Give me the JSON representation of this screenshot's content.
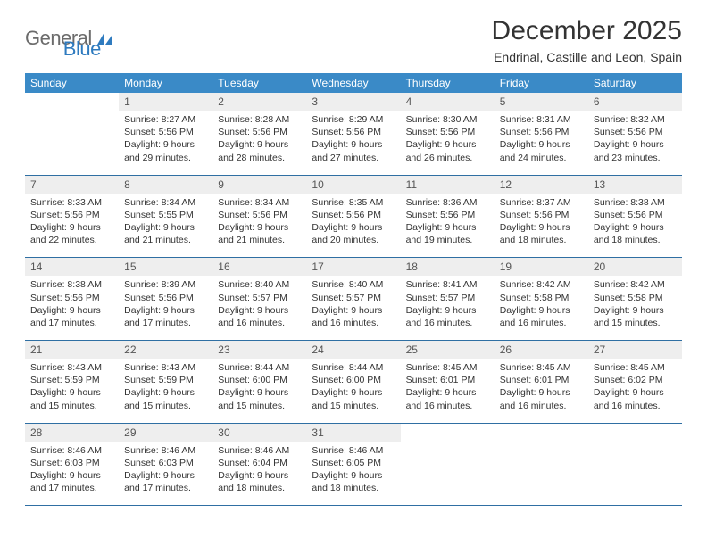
{
  "logo": {
    "word1": "General",
    "word2": "Blue"
  },
  "header": {
    "title": "December 2025",
    "location": "Endrinal, Castille and Leon, Spain"
  },
  "colors": {
    "header_bg": "#3a8ac7",
    "header_text": "#ffffff",
    "daynum_bg": "#eeeeee",
    "daynum_text": "#555555",
    "row_border": "#2f6fa3",
    "body_text": "#333333",
    "logo_gray": "#6b6b6b",
    "logo_blue": "#2f7bbf",
    "page_bg": "#ffffff"
  },
  "fonts": {
    "title_pt": 30,
    "subtitle_pt": 14,
    "th_pt": 12,
    "daynum_pt": 12,
    "body_pt": 10.5
  },
  "weekdays": [
    "Sunday",
    "Monday",
    "Tuesday",
    "Wednesday",
    "Thursday",
    "Friday",
    "Saturday"
  ],
  "weeks": [
    [
      {
        "empty": true
      },
      {
        "n": "1",
        "sr": "Sunrise: 8:27 AM",
        "ss": "Sunset: 5:56 PM",
        "dl": "Daylight: 9 hours and 29 minutes."
      },
      {
        "n": "2",
        "sr": "Sunrise: 8:28 AM",
        "ss": "Sunset: 5:56 PM",
        "dl": "Daylight: 9 hours and 28 minutes."
      },
      {
        "n": "3",
        "sr": "Sunrise: 8:29 AM",
        "ss": "Sunset: 5:56 PM",
        "dl": "Daylight: 9 hours and 27 minutes."
      },
      {
        "n": "4",
        "sr": "Sunrise: 8:30 AM",
        "ss": "Sunset: 5:56 PM",
        "dl": "Daylight: 9 hours and 26 minutes."
      },
      {
        "n": "5",
        "sr": "Sunrise: 8:31 AM",
        "ss": "Sunset: 5:56 PM",
        "dl": "Daylight: 9 hours and 24 minutes."
      },
      {
        "n": "6",
        "sr": "Sunrise: 8:32 AM",
        "ss": "Sunset: 5:56 PM",
        "dl": "Daylight: 9 hours and 23 minutes."
      }
    ],
    [
      {
        "n": "7",
        "sr": "Sunrise: 8:33 AM",
        "ss": "Sunset: 5:56 PM",
        "dl": "Daylight: 9 hours and 22 minutes."
      },
      {
        "n": "8",
        "sr": "Sunrise: 8:34 AM",
        "ss": "Sunset: 5:55 PM",
        "dl": "Daylight: 9 hours and 21 minutes."
      },
      {
        "n": "9",
        "sr": "Sunrise: 8:34 AM",
        "ss": "Sunset: 5:56 PM",
        "dl": "Daylight: 9 hours and 21 minutes."
      },
      {
        "n": "10",
        "sr": "Sunrise: 8:35 AM",
        "ss": "Sunset: 5:56 PM",
        "dl": "Daylight: 9 hours and 20 minutes."
      },
      {
        "n": "11",
        "sr": "Sunrise: 8:36 AM",
        "ss": "Sunset: 5:56 PM",
        "dl": "Daylight: 9 hours and 19 minutes."
      },
      {
        "n": "12",
        "sr": "Sunrise: 8:37 AM",
        "ss": "Sunset: 5:56 PM",
        "dl": "Daylight: 9 hours and 18 minutes."
      },
      {
        "n": "13",
        "sr": "Sunrise: 8:38 AM",
        "ss": "Sunset: 5:56 PM",
        "dl": "Daylight: 9 hours and 18 minutes."
      }
    ],
    [
      {
        "n": "14",
        "sr": "Sunrise: 8:38 AM",
        "ss": "Sunset: 5:56 PM",
        "dl": "Daylight: 9 hours and 17 minutes."
      },
      {
        "n": "15",
        "sr": "Sunrise: 8:39 AM",
        "ss": "Sunset: 5:56 PM",
        "dl": "Daylight: 9 hours and 17 minutes."
      },
      {
        "n": "16",
        "sr": "Sunrise: 8:40 AM",
        "ss": "Sunset: 5:57 PM",
        "dl": "Daylight: 9 hours and 16 minutes."
      },
      {
        "n": "17",
        "sr": "Sunrise: 8:40 AM",
        "ss": "Sunset: 5:57 PM",
        "dl": "Daylight: 9 hours and 16 minutes."
      },
      {
        "n": "18",
        "sr": "Sunrise: 8:41 AM",
        "ss": "Sunset: 5:57 PM",
        "dl": "Daylight: 9 hours and 16 minutes."
      },
      {
        "n": "19",
        "sr": "Sunrise: 8:42 AM",
        "ss": "Sunset: 5:58 PM",
        "dl": "Daylight: 9 hours and 16 minutes."
      },
      {
        "n": "20",
        "sr": "Sunrise: 8:42 AM",
        "ss": "Sunset: 5:58 PM",
        "dl": "Daylight: 9 hours and 15 minutes."
      }
    ],
    [
      {
        "n": "21",
        "sr": "Sunrise: 8:43 AM",
        "ss": "Sunset: 5:59 PM",
        "dl": "Daylight: 9 hours and 15 minutes."
      },
      {
        "n": "22",
        "sr": "Sunrise: 8:43 AM",
        "ss": "Sunset: 5:59 PM",
        "dl": "Daylight: 9 hours and 15 minutes."
      },
      {
        "n": "23",
        "sr": "Sunrise: 8:44 AM",
        "ss": "Sunset: 6:00 PM",
        "dl": "Daylight: 9 hours and 15 minutes."
      },
      {
        "n": "24",
        "sr": "Sunrise: 8:44 AM",
        "ss": "Sunset: 6:00 PM",
        "dl": "Daylight: 9 hours and 15 minutes."
      },
      {
        "n": "25",
        "sr": "Sunrise: 8:45 AM",
        "ss": "Sunset: 6:01 PM",
        "dl": "Daylight: 9 hours and 16 minutes."
      },
      {
        "n": "26",
        "sr": "Sunrise: 8:45 AM",
        "ss": "Sunset: 6:01 PM",
        "dl": "Daylight: 9 hours and 16 minutes."
      },
      {
        "n": "27",
        "sr": "Sunrise: 8:45 AM",
        "ss": "Sunset: 6:02 PM",
        "dl": "Daylight: 9 hours and 16 minutes."
      }
    ],
    [
      {
        "n": "28",
        "sr": "Sunrise: 8:46 AM",
        "ss": "Sunset: 6:03 PM",
        "dl": "Daylight: 9 hours and 17 minutes."
      },
      {
        "n": "29",
        "sr": "Sunrise: 8:46 AM",
        "ss": "Sunset: 6:03 PM",
        "dl": "Daylight: 9 hours and 17 minutes."
      },
      {
        "n": "30",
        "sr": "Sunrise: 8:46 AM",
        "ss": "Sunset: 6:04 PM",
        "dl": "Daylight: 9 hours and 18 minutes."
      },
      {
        "n": "31",
        "sr": "Sunrise: 8:46 AM",
        "ss": "Sunset: 6:05 PM",
        "dl": "Daylight: 9 hours and 18 minutes."
      },
      {
        "empty": true
      },
      {
        "empty": true
      },
      {
        "empty": true
      }
    ]
  ]
}
